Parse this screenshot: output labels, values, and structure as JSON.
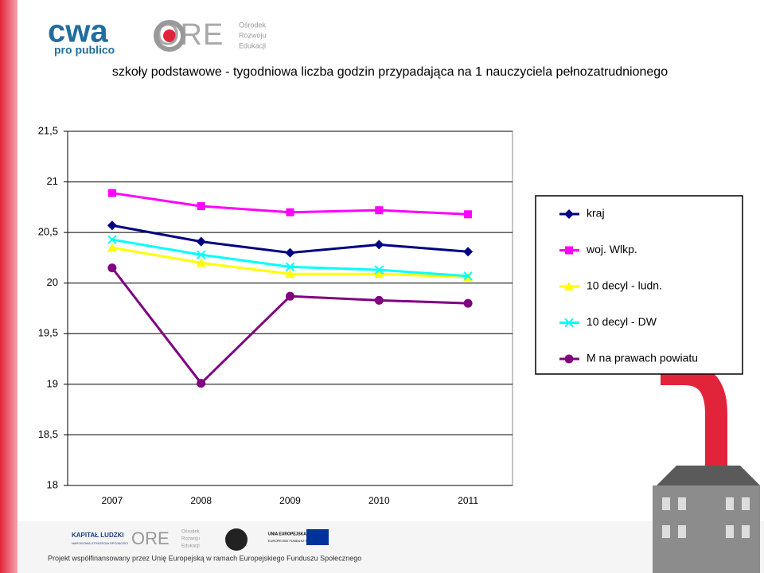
{
  "header": {
    "cwa_logo": "cwa",
    "cwa_tagline": "pro publico",
    "ore_logo": "ORE",
    "ore_name": [
      "Ośrodek",
      "Rozwoju",
      "Edukacji"
    ]
  },
  "chart_data": {
    "type": "line",
    "title": "szkoły podstawowe - tygodniowa liczba godzin przypadająca na 1 nauczyciela pełnozatrudnionego",
    "categories": [
      "2007",
      "2008",
      "2009",
      "2010",
      "2011"
    ],
    "series": [
      {
        "name": "kraj",
        "color": "#000080",
        "marker": "diamond",
        "values": [
          20.57,
          20.41,
          20.3,
          20.38,
          20.31
        ]
      },
      {
        "name": "woj. Wlkp.",
        "color": "#ff00ff",
        "marker": "square",
        "values": [
          20.89,
          20.76,
          20.7,
          20.72,
          20.68
        ]
      },
      {
        "name": "10 decyl - ludn.",
        "color": "#ffff00",
        "marker": "triangle",
        "values": [
          20.35,
          20.2,
          20.09,
          20.09,
          20.06
        ]
      },
      {
        "name": "10 decyl - DW",
        "color": "#00ffff",
        "marker": "x",
        "values": [
          20.43,
          20.28,
          20.16,
          20.13,
          20.07
        ]
      },
      {
        "name": "M na prawach powiatu",
        "color": "#800080",
        "marker": "circle",
        "values": [
          20.15,
          19.01,
          19.87,
          19.83,
          19.8
        ]
      }
    ],
    "ylim": [
      18,
      21.5
    ],
    "yticks": [
      18,
      {
        "value": 18.5,
        "label": "18,5"
      },
      19,
      {
        "value": 19.5,
        "label": "19,5"
      },
      20,
      {
        "value": 20.5,
        "label": "20,5"
      },
      21,
      {
        "value": 21.5,
        "label": "21,5"
      }
    ],
    "grid": true,
    "legend": "right"
  },
  "footer": {
    "kl_logo": "KAPITAŁ LUDZKI",
    "kl_sub": "NARODOWA STRATEGIA SPÓJNOŚCI",
    "ore_logo": "ORE",
    "ore_name": [
      "Ośrodek",
      "Rozwoju",
      "Edukacji"
    ],
    "ue": "UNIA EUROPEJSKA",
    "efs": "EUROPEJSKI FUNDUSZ SPOŁECZNY",
    "note": "Projekt współfinansowany przez Unię Europejską w ramach Europejskiego Funduszu Społecznego"
  }
}
